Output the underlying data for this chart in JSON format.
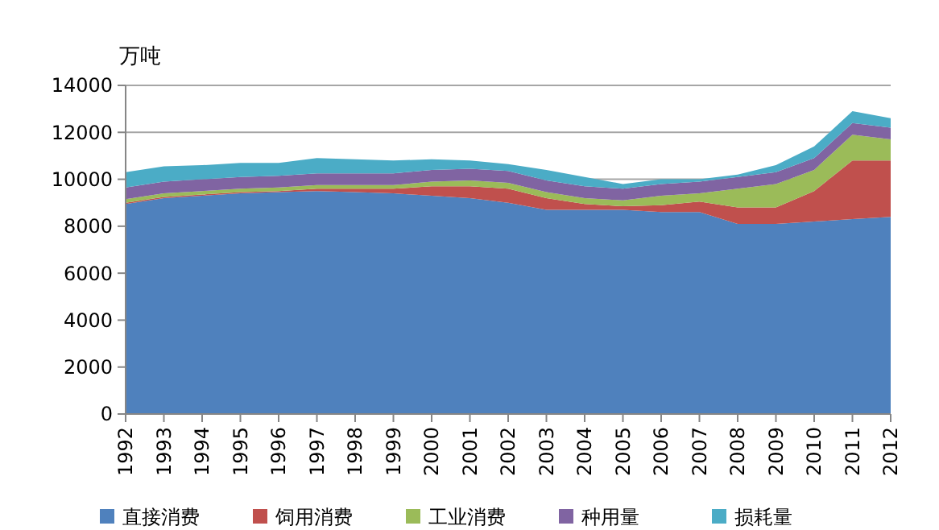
{
  "chart_data": {
    "type": "area",
    "stacked": true,
    "ylabel": "万吨",
    "x": [
      1992,
      1993,
      1994,
      1995,
      1996,
      1997,
      1998,
      1999,
      2000,
      2001,
      2002,
      2003,
      2004,
      2005,
      2006,
      2007,
      2008,
      2009,
      2010,
      2011,
      2012
    ],
    "series": [
      {
        "name": "直接消费",
        "color": "#4f81bd",
        "values": [
          8950,
          9200,
          9300,
          9400,
          9450,
          9500,
          9450,
          9400,
          9300,
          9200,
          9000,
          8700,
          8700,
          8700,
          8600,
          8600,
          8100,
          8100,
          8200,
          8300,
          8400
        ]
      },
      {
        "name": "饲用消费",
        "color": "#c0504d",
        "values": [
          50,
          50,
          50,
          50,
          50,
          100,
          150,
          200,
          400,
          500,
          600,
          500,
          250,
          150,
          300,
          450,
          700,
          700,
          1300,
          2500,
          2400
        ]
      },
      {
        "name": "工业消费",
        "color": "#9bbb59",
        "values": [
          150,
          150,
          150,
          150,
          150,
          150,
          150,
          150,
          200,
          250,
          250,
          250,
          250,
          250,
          400,
          350,
          800,
          1000,
          900,
          1100,
          900
        ]
      },
      {
        "name": "种用量",
        "color": "#8064a2",
        "values": [
          500,
          500,
          500,
          500,
          500,
          500,
          500,
          500,
          500,
          500,
          500,
          500,
          500,
          500,
          500,
          500,
          500,
          500,
          500,
          500,
          500
        ]
      },
      {
        "name": "损耗量",
        "color": "#4bacc6",
        "values": [
          650,
          650,
          600,
          600,
          550,
          650,
          600,
          550,
          450,
          350,
          300,
          450,
          400,
          200,
          200,
          100,
          100,
          300,
          500,
          500,
          400
        ]
      }
    ],
    "xlim": [
      1992,
      2012
    ],
    "xticks": [
      1992,
      1993,
      1994,
      1995,
      1996,
      1997,
      1998,
      1999,
      2000,
      2001,
      2002,
      2003,
      2004,
      2005,
      2006,
      2007,
      2008,
      2009,
      2010,
      2011,
      2012
    ],
    "ylim": [
      0,
      14000
    ],
    "yticks": [
      0,
      2000,
      4000,
      6000,
      8000,
      10000,
      12000,
      14000
    ],
    "grid": "y",
    "legend": "bottom"
  }
}
